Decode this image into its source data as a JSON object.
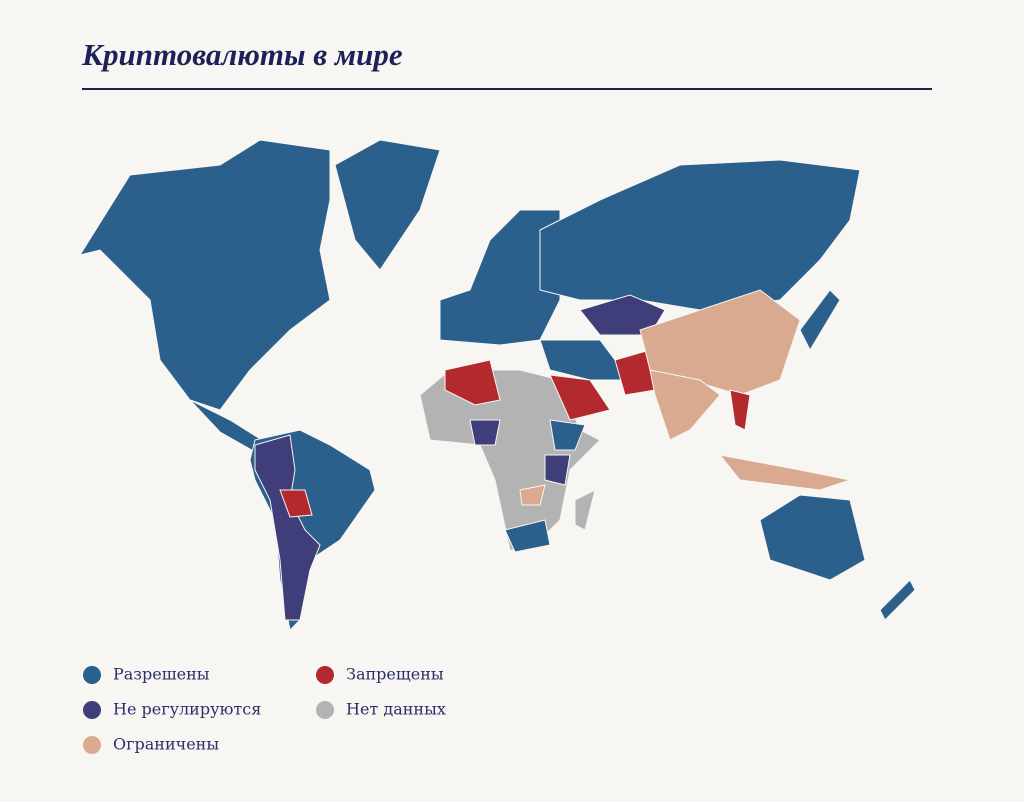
{
  "title": "Криптовалюты в мире",
  "legend": [
    {
      "label": "Разрешены",
      "color": "#2b5f8c"
    },
    {
      "label": "Не регулируются",
      "color": "#3f3d7a"
    },
    {
      "label": "Ограничены",
      "color": "#d9aa90"
    },
    {
      "label": "Запрещены",
      "color": "#b32a2e"
    },
    {
      "label": "Нет данных",
      "color": "#b3b3b3"
    }
  ]
}
